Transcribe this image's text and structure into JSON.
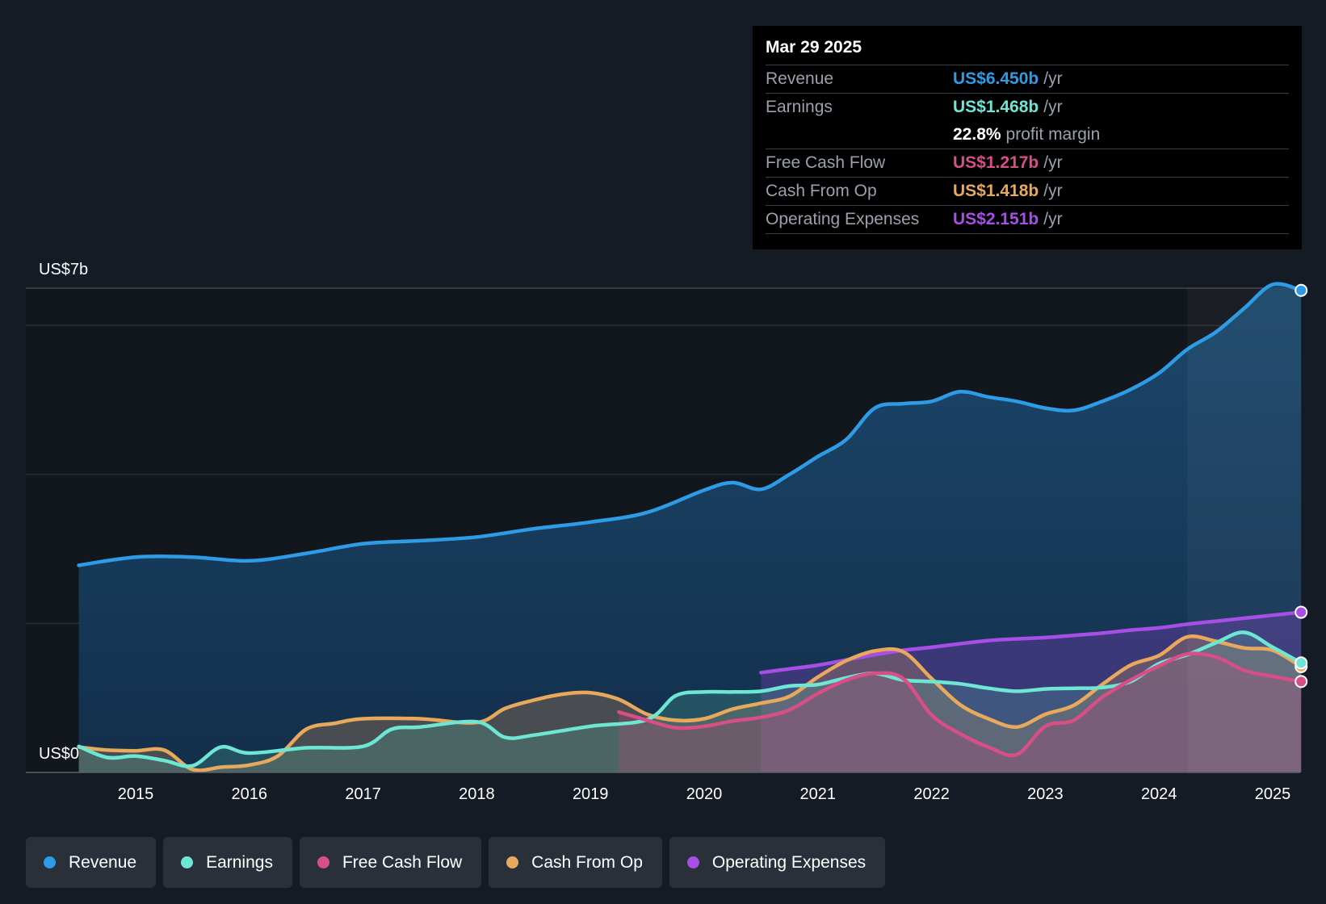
{
  "tooltip": {
    "date": "Mar 29 2025",
    "rows": [
      {
        "label": "Revenue",
        "value": "US$6.450b",
        "unit": "/yr",
        "color": "#2d9be6"
      },
      {
        "label": "Earnings",
        "value": "US$1.468b",
        "unit": "/yr",
        "color": "#6de6d4"
      },
      {
        "label": "",
        "value": "22.8%",
        "unit": "profit margin",
        "color": "#ffffff"
      },
      {
        "label": "Free Cash Flow",
        "value": "US$1.217b",
        "unit": "/yr",
        "color": "#d84e86"
      },
      {
        "label": "Cash From Op",
        "value": "US$1.418b",
        "unit": "/yr",
        "color": "#e8a95c"
      },
      {
        "label": "Operating Expenses",
        "value": "US$2.151b",
        "unit": "/yr",
        "color": "#a64ee6"
      }
    ]
  },
  "legend": [
    {
      "label": "Revenue",
      "color": "#2d9be6"
    },
    {
      "label": "Earnings",
      "color": "#6de6d4"
    },
    {
      "label": "Free Cash Flow",
      "color": "#d84e86"
    },
    {
      "label": "Cash From Op",
      "color": "#e8a95c"
    },
    {
      "label": "Operating Expenses",
      "color": "#a64ee6"
    }
  ],
  "chart_data": {
    "type": "area",
    "title": "",
    "y_top_label": "US$7b",
    "y_bottom_label": "US$0",
    "ylim": [
      0,
      6.5
    ],
    "xlim": [
      2014.0,
      2025.25
    ],
    "x_ticks": [
      2015,
      2016,
      2017,
      2018,
      2019,
      2020,
      2021,
      2022,
      2023,
      2024,
      2025
    ],
    "x_tick_labels": [
      "2015",
      "2016",
      "2017",
      "2018",
      "2019",
      "2020",
      "2021",
      "2022",
      "2023",
      "2024",
      "2025"
    ],
    "series": [
      {
        "name": "Revenue",
        "color": "#2d9be6",
        "x": [
          2014.5,
          2015.0,
          2015.5,
          2016.0,
          2016.5,
          2017.0,
          2017.5,
          2018.0,
          2018.5,
          2019.0,
          2019.5,
          2020.0,
          2020.25,
          2020.5,
          2020.75,
          2021.0,
          2021.25,
          2021.5,
          2021.75,
          2022.0,
          2022.25,
          2022.5,
          2022.75,
          2023.0,
          2023.25,
          2023.5,
          2023.75,
          2024.0,
          2024.25,
          2024.5,
          2024.75,
          2025.0,
          2025.25
        ],
        "values": [
          2.78,
          2.89,
          2.89,
          2.84,
          2.94,
          3.07,
          3.11,
          3.16,
          3.27,
          3.36,
          3.49,
          3.79,
          3.89,
          3.8,
          4.0,
          4.24,
          4.47,
          4.89,
          4.95,
          4.98,
          5.11,
          5.04,
          4.98,
          4.89,
          4.86,
          4.98,
          5.14,
          5.36,
          5.68,
          5.91,
          6.23,
          6.55,
          6.47
        ]
      },
      {
        "name": "Operating Expenses",
        "color": "#a64ee6",
        "x": [
          2020.5,
          2020.75,
          2021.0,
          2021.25,
          2021.5,
          2021.75,
          2022.0,
          2022.5,
          2023.0,
          2023.25,
          2023.5,
          2023.75,
          2024.0,
          2024.25,
          2024.5,
          2024.75,
          2025.0,
          2025.25
        ],
        "values": [
          1.34,
          1.39,
          1.44,
          1.51,
          1.58,
          1.64,
          1.68,
          1.77,
          1.81,
          1.84,
          1.87,
          1.91,
          1.94,
          1.99,
          2.03,
          2.07,
          2.11,
          2.15
        ]
      },
      {
        "name": "Cash From Op",
        "color": "#e8a95c",
        "x": [
          2014.5,
          2014.75,
          2015.0,
          2015.25,
          2015.5,
          2015.75,
          2016.0,
          2016.25,
          2016.5,
          2016.75,
          2017.0,
          2017.5,
          2018.0,
          2018.25,
          2018.5,
          2018.75,
          2019.0,
          2019.25,
          2019.5,
          2019.75,
          2020.0,
          2020.25,
          2020.5,
          2020.75,
          2021.0,
          2021.25,
          2021.5,
          2021.75,
          2022.0,
          2022.25,
          2022.5,
          2022.75,
          2023.0,
          2023.25,
          2023.5,
          2023.75,
          2024.0,
          2024.25,
          2024.5,
          2024.75,
          2025.0,
          2025.25
        ],
        "values": [
          0.34,
          0.3,
          0.29,
          0.3,
          0.04,
          0.07,
          0.1,
          0.22,
          0.58,
          0.66,
          0.72,
          0.72,
          0.67,
          0.86,
          0.97,
          1.05,
          1.07,
          0.98,
          0.78,
          0.7,
          0.72,
          0.85,
          0.93,
          1.02,
          1.28,
          1.5,
          1.63,
          1.62,
          1.26,
          0.91,
          0.72,
          0.61,
          0.78,
          0.9,
          1.18,
          1.44,
          1.57,
          1.82,
          1.76,
          1.67,
          1.64,
          1.42
        ]
      },
      {
        "name": "Earnings",
        "color": "#6de6d4",
        "x": [
          2014.5,
          2014.75,
          2015.0,
          2015.25,
          2015.5,
          2015.75,
          2016.0,
          2016.5,
          2017.0,
          2017.25,
          2017.5,
          2018.0,
          2018.25,
          2018.5,
          2019.0,
          2019.5,
          2019.75,
          2020.0,
          2020.25,
          2020.5,
          2020.75,
          2021.0,
          2021.25,
          2021.5,
          2021.75,
          2022.0,
          2022.25,
          2022.5,
          2022.75,
          2023.0,
          2023.25,
          2023.5,
          2023.75,
          2024.0,
          2024.25,
          2024.5,
          2024.75,
          2025.0,
          2025.25
        ],
        "values": [
          0.35,
          0.2,
          0.22,
          0.16,
          0.09,
          0.34,
          0.26,
          0.33,
          0.35,
          0.58,
          0.61,
          0.68,
          0.47,
          0.5,
          0.62,
          0.71,
          1.03,
          1.08,
          1.08,
          1.09,
          1.16,
          1.18,
          1.27,
          1.33,
          1.24,
          1.22,
          1.19,
          1.13,
          1.09,
          1.12,
          1.13,
          1.14,
          1.22,
          1.46,
          1.58,
          1.74,
          1.88,
          1.68,
          1.47
        ]
      },
      {
        "name": "Free Cash Flow",
        "color": "#d84e86",
        "x": [
          2019.25,
          2019.5,
          2019.75,
          2020.0,
          2020.25,
          2020.5,
          2020.75,
          2021.0,
          2021.25,
          2021.5,
          2021.75,
          2022.0,
          2022.25,
          2022.5,
          2022.75,
          2023.0,
          2023.25,
          2023.5,
          2023.75,
          2024.0,
          2024.25,
          2024.5,
          2024.75,
          2025.0,
          2025.25
        ],
        "values": [
          0.81,
          0.7,
          0.6,
          0.62,
          0.69,
          0.74,
          0.84,
          1.06,
          1.24,
          1.33,
          1.26,
          0.77,
          0.52,
          0.34,
          0.24,
          0.62,
          0.7,
          1.01,
          1.24,
          1.43,
          1.59,
          1.55,
          1.37,
          1.29,
          1.22
        ]
      }
    ]
  }
}
